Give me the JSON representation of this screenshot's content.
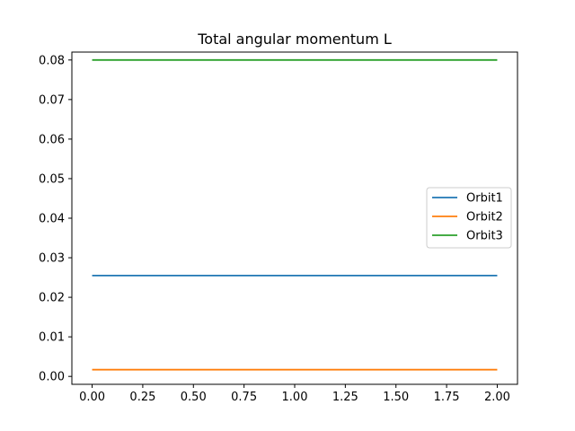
{
  "chart_data": {
    "type": "line",
    "title": "Total angular momentum L",
    "xlabel": "",
    "ylabel": "",
    "xlim": [
      -0.1,
      2.1
    ],
    "ylim": [
      -0.002,
      0.082
    ],
    "xticks": [
      0.0,
      0.25,
      0.5,
      0.75,
      1.0,
      1.25,
      1.5,
      1.75,
      2.0
    ],
    "xtick_labels": [
      "0.00",
      "0.25",
      "0.50",
      "0.75",
      "1.00",
      "1.25",
      "1.50",
      "1.75",
      "2.00"
    ],
    "yticks": [
      0.0,
      0.01,
      0.02,
      0.03,
      0.04,
      0.05,
      0.06,
      0.07,
      0.08
    ],
    "ytick_labels": [
      "0.00",
      "0.01",
      "0.02",
      "0.03",
      "0.04",
      "0.05",
      "0.06",
      "0.07",
      "0.08"
    ],
    "grid": false,
    "legend_position": "center-right",
    "series": [
      {
        "name": "Orbit1",
        "color": "#1f77b4",
        "x": [
          0.0,
          2.0
        ],
        "y": [
          0.0255,
          0.0255
        ]
      },
      {
        "name": "Orbit2",
        "color": "#ff7f0e",
        "x": [
          0.0,
          2.0
        ],
        "y": [
          0.0017,
          0.0017
        ]
      },
      {
        "name": "Orbit3",
        "color": "#2ca02c",
        "x": [
          0.0,
          2.0
        ],
        "y": [
          0.08,
          0.08
        ]
      }
    ]
  }
}
